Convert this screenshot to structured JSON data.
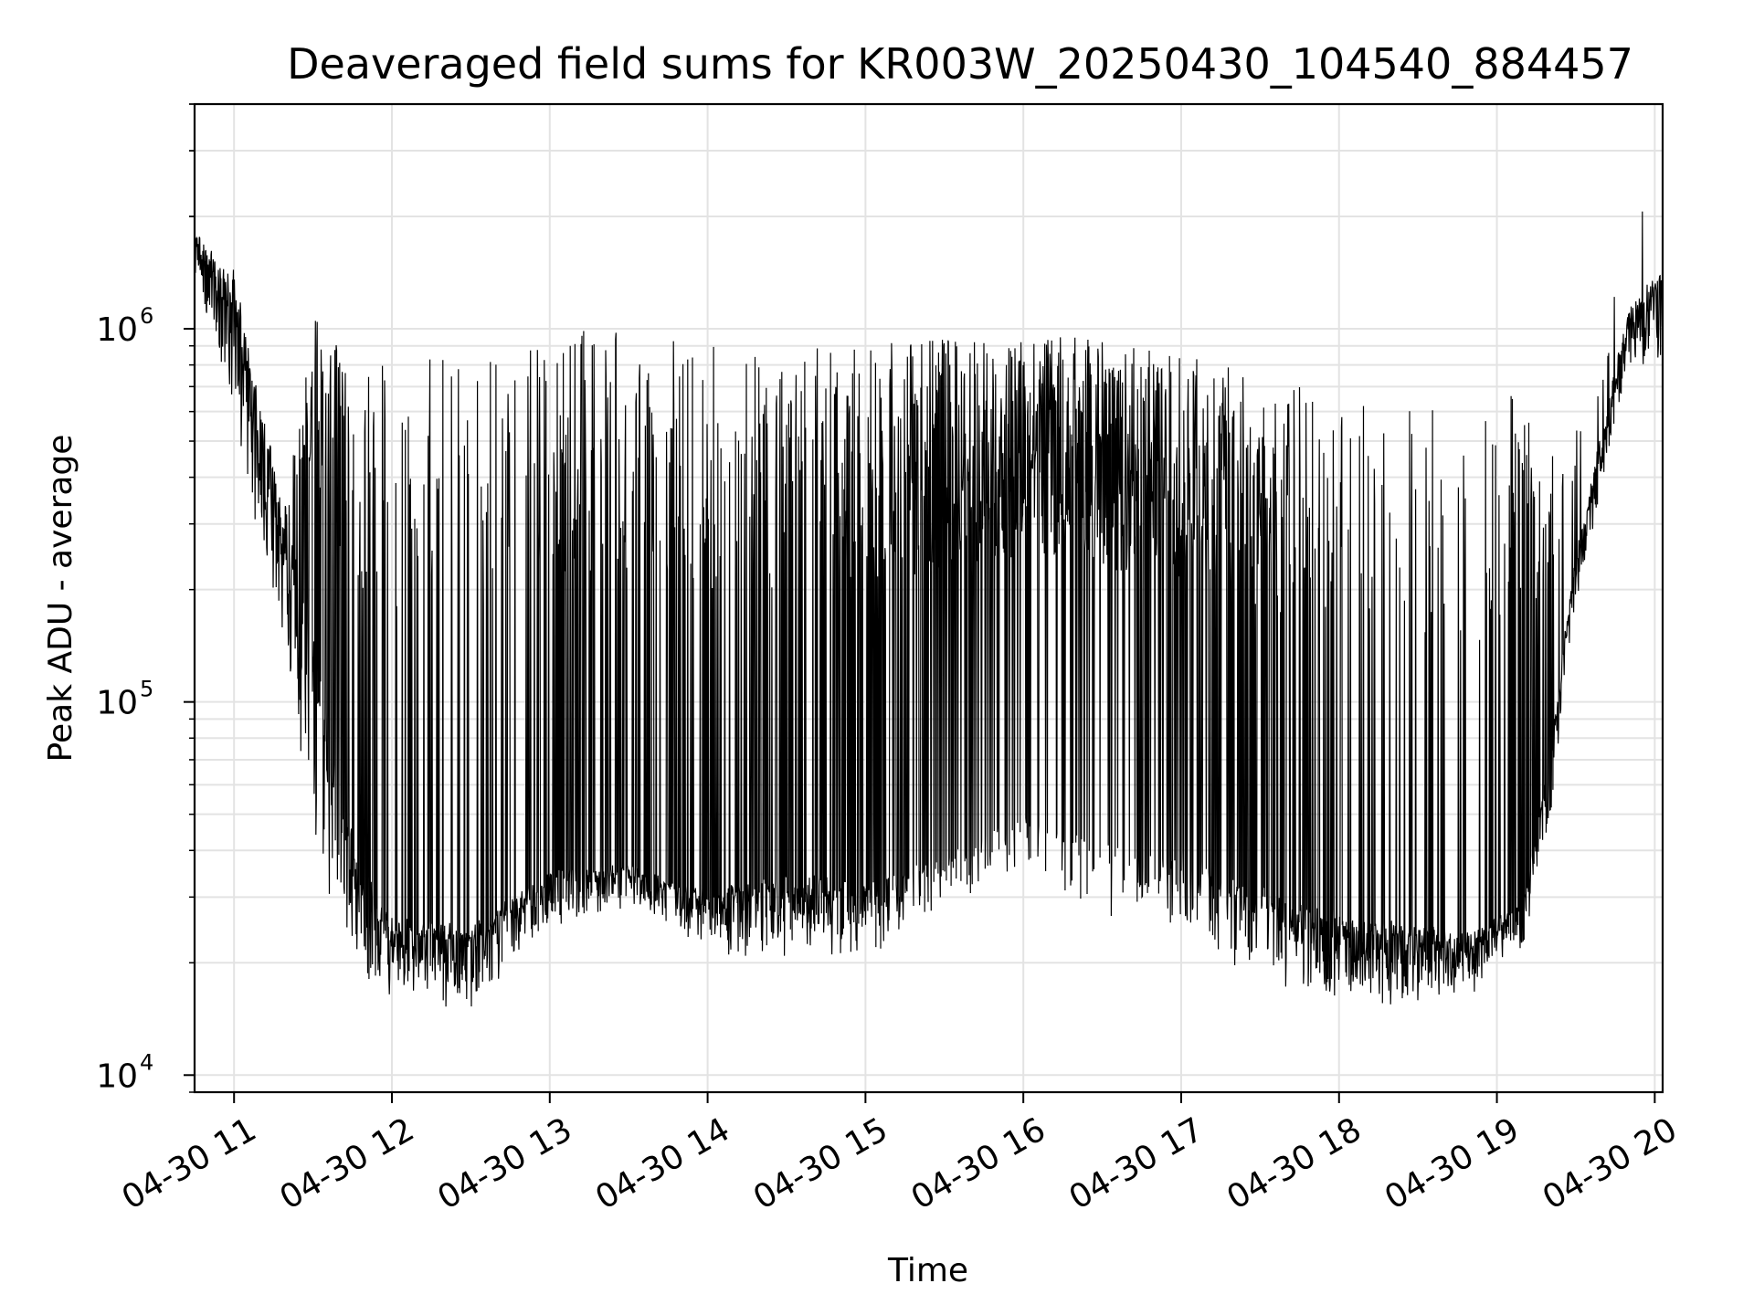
{
  "chart_data": {
    "type": "line",
    "title": "Deaveraged field sums for KR003W_20250430_104540_884457",
    "xlabel": "Time",
    "ylabel": "Peak ADU - average",
    "yscale": "log",
    "ylim": [
      9000,
      4000000
    ],
    "xlim": [
      "2025-04-30 10:45",
      "2025-04-30 20:03"
    ],
    "grid": true,
    "line_color": "#000000",
    "x_ticks": [
      {
        "at": "2025-04-30 11:00",
        "label": "04-30 11"
      },
      {
        "at": "2025-04-30 12:00",
        "label": "04-30 12"
      },
      {
        "at": "2025-04-30 13:00",
        "label": "04-30 13"
      },
      {
        "at": "2025-04-30 14:00",
        "label": "04-30 14"
      },
      {
        "at": "2025-04-30 15:00",
        "label": "04-30 15"
      },
      {
        "at": "2025-04-30 16:00",
        "label": "04-30 16"
      },
      {
        "at": "2025-04-30 17:00",
        "label": "04-30 17"
      },
      {
        "at": "2025-04-30 18:00",
        "label": "04-30 18"
      },
      {
        "at": "2025-04-30 19:00",
        "label": "04-30 19"
      },
      {
        "at": "2025-04-30 20:00",
        "label": "04-30 20"
      }
    ],
    "y_ticks": [
      {
        "value": 10000,
        "base": "10",
        "exp": "4"
      },
      {
        "value": 100000,
        "base": "10",
        "exp": "5"
      },
      {
        "value": 1000000,
        "base": "10",
        "exp": "6"
      }
    ],
    "series": [
      {
        "name": "",
        "envelope": {
          "x": [
            "2025-04-30 10:45",
            "2025-04-30 11:00",
            "2025-04-30 11:10",
            "2025-04-30 11:20",
            "2025-04-30 11:30",
            "2025-04-30 11:40",
            "2025-04-30 11:50",
            "2025-04-30 12:00",
            "2025-04-30 12:30",
            "2025-04-30 13:00",
            "2025-04-30 13:30",
            "2025-04-30 14:00",
            "2025-04-30 14:30",
            "2025-04-30 15:00",
            "2025-04-30 15:30",
            "2025-04-30 16:00",
            "2025-04-30 16:30",
            "2025-04-30 17:00",
            "2025-04-30 17:30",
            "2025-04-30 18:00",
            "2025-04-30 18:30",
            "2025-04-30 18:50",
            "2025-04-30 19:00",
            "2025-04-30 19:10",
            "2025-04-30 19:20",
            "2025-04-30 19:30",
            "2025-04-30 19:40",
            "2025-04-30 19:50",
            "2025-04-30 20:03"
          ],
          "baseline": [
            1800000,
            1300000,
            600000,
            300000,
            130000,
            55000,
            33000,
            25000,
            24000,
            34000,
            36000,
            30000,
            33000,
            32000,
            38000,
            48000,
            40000,
            38000,
            30000,
            26000,
            24000,
            23000,
            26000,
            28000,
            70000,
            250000,
            520000,
            1100000,
            1400000
          ],
          "low": [
            1400000,
            550000,
            250000,
            120000,
            40000,
            25000,
            17000,
            16000,
            15000,
            25000,
            28000,
            21000,
            20000,
            20000,
            28000,
            36000,
            26000,
            24000,
            17000,
            16000,
            15000,
            15000,
            20000,
            22000,
            45000,
            180000,
            380000,
            800000,
            800000
          ],
          "high": [
            2400000,
            1100000,
            600000,
            350000,
            1100000,
            900000,
            800000,
            800000,
            900000,
            1000000,
            1000000,
            900000,
            900000,
            900000,
            950000,
            950000,
            950000,
            850000,
            750000,
            700000,
            650000,
            600000,
            650000,
            700000,
            450000,
            550000,
            900000,
            2000000,
            2500000
          ],
          "spike_rate": [
            0,
            0.05,
            0.05,
            0.05,
            0.6,
            0.45,
            0.22,
            0.12,
            0.14,
            0.3,
            0.35,
            0.2,
            0.3,
            0.4,
            0.75,
            0.8,
            0.8,
            0.7,
            0.45,
            0.2,
            0.12,
            0.12,
            0.2,
            0.4,
            0.3,
            0.1,
            0.05,
            0.02,
            0.02
          ]
        }
      }
    ]
  }
}
